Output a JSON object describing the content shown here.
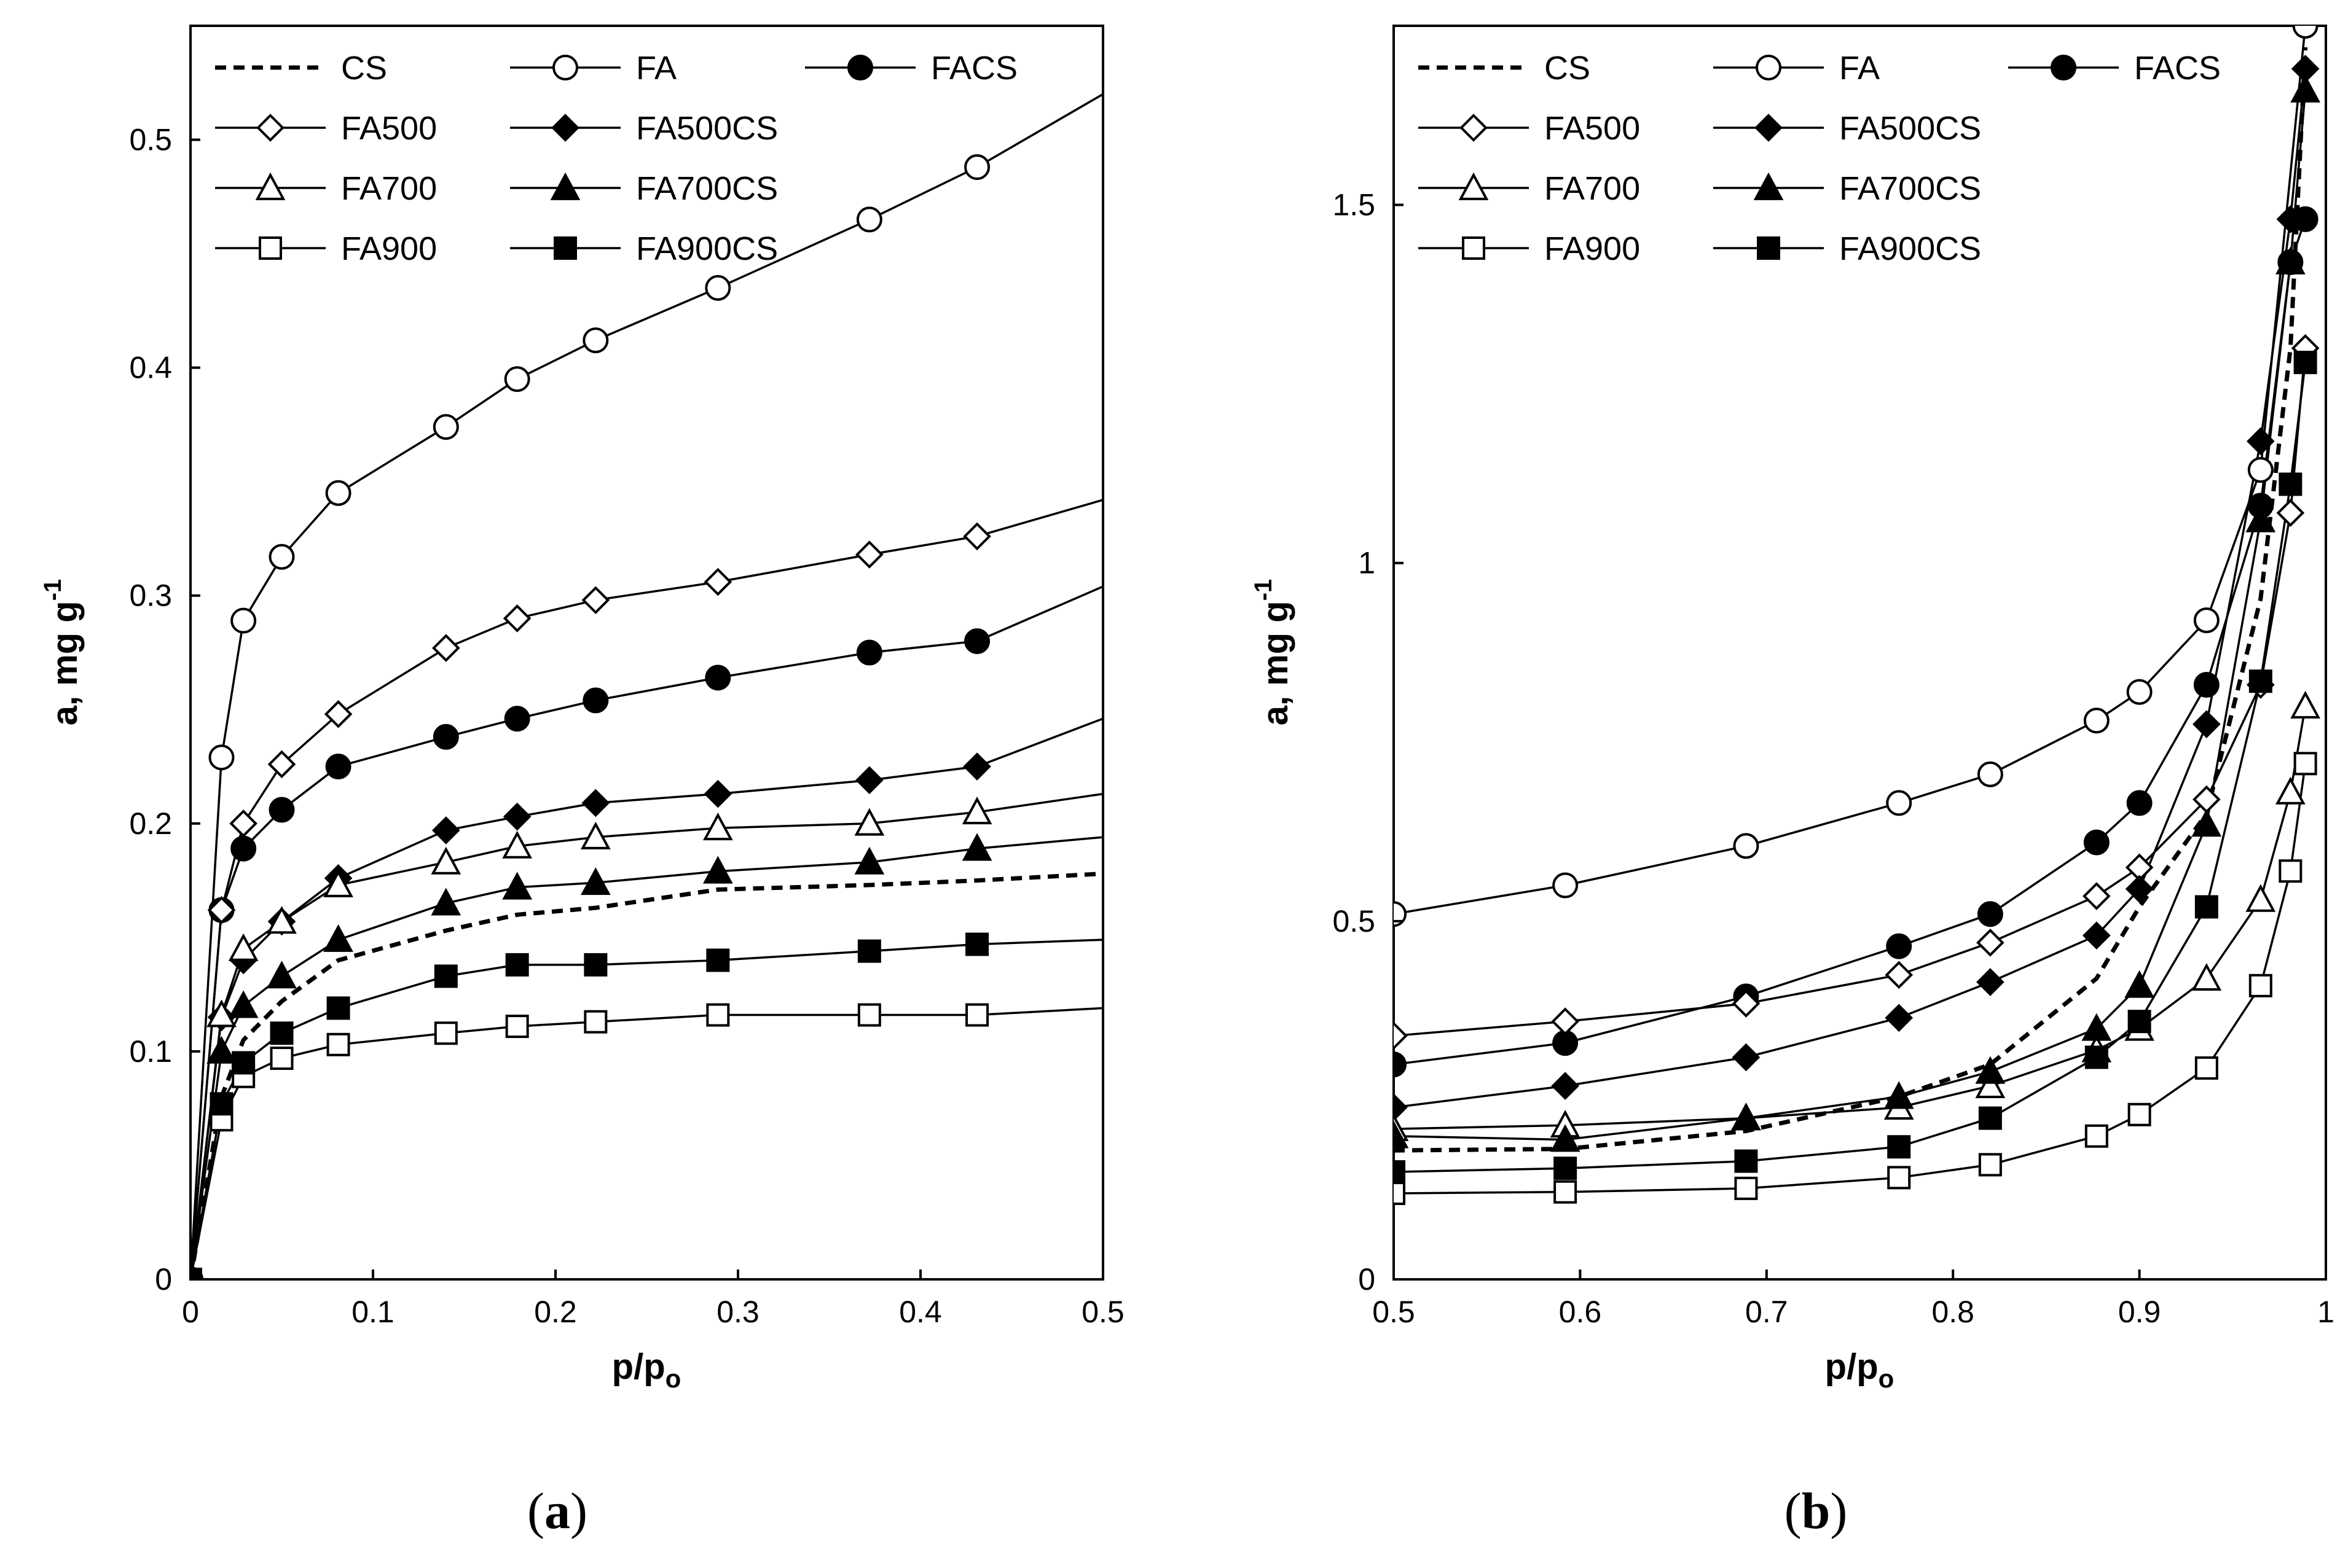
{
  "chart_data": [
    {
      "type": "line",
      "panel_label": "a",
      "title": "",
      "xlabel": "p/p",
      "xlabel_sub": "o",
      "ylabel": "a, mg g",
      "ylabel_sup": "-1",
      "xlim": [
        0,
        0.5
      ],
      "ylim": [
        0,
        0.55
      ],
      "xticks": [
        0,
        0.1,
        0.2,
        0.3,
        0.4,
        0.5
      ],
      "xtick_labels": [
        "0",
        "0.1",
        "0.2",
        "0.3",
        "0.4",
        "0.5"
      ],
      "yticks": [
        0,
        0.1,
        0.2,
        0.3,
        0.4,
        0.5
      ],
      "ytick_labels": [
        "0",
        "0.1",
        "0.2",
        "0.3",
        "0.4",
        "0.5"
      ],
      "grid": false,
      "legend": "top",
      "series": [
        {
          "name": "CS",
          "key": "CS",
          "marker": "none",
          "dashed": true,
          "x": [
            0,
            0.017,
            0.029,
            0.05,
            0.081,
            0.14,
            0.179,
            0.222,
            0.289,
            0.372,
            0.431,
            0.5
          ],
          "y": [
            0,
            0.08,
            0.105,
            0.122,
            0.14,
            0.153,
            0.16,
            0.163,
            0.171,
            0.173,
            0.175,
            0.178
          ]
        },
        {
          "name": "FA",
          "key": "FA",
          "marker": "circle-open",
          "dashed": false,
          "x": [
            0,
            0.017,
            0.029,
            0.05,
            0.081,
            0.14,
            0.179,
            0.222,
            0.289,
            0.372,
            0.431,
            0.5
          ],
          "y": [
            0,
            0.229,
            0.289,
            0.317,
            0.345,
            0.374,
            0.395,
            0.412,
            0.435,
            0.465,
            0.488,
            0.52
          ]
        },
        {
          "name": "FACS",
          "key": "FACS",
          "marker": "circle-filled",
          "dashed": false,
          "x": [
            0,
            0.017,
            0.029,
            0.05,
            0.081,
            0.14,
            0.179,
            0.222,
            0.289,
            0.372,
            0.431,
            0.5
          ],
          "y": [
            0,
            0.162,
            0.189,
            0.206,
            0.225,
            0.238,
            0.246,
            0.254,
            0.264,
            0.275,
            0.28,
            0.304
          ]
        },
        {
          "name": "FA500",
          "key": "FA500",
          "marker": "diamond-open",
          "dashed": false,
          "x": [
            0,
            0.017,
            0.029,
            0.05,
            0.081,
            0.14,
            0.179,
            0.222,
            0.289,
            0.372,
            0.431,
            0.5
          ],
          "y": [
            0,
            0.162,
            0.2,
            0.226,
            0.248,
            0.277,
            0.29,
            0.298,
            0.306,
            0.318,
            0.326,
            0.342
          ]
        },
        {
          "name": "FA500CS",
          "key": "FA500CS",
          "marker": "diamond-filled",
          "dashed": false,
          "x": [
            0,
            0.017,
            0.029,
            0.05,
            0.081,
            0.14,
            0.179,
            0.222,
            0.289,
            0.372,
            0.431,
            0.5
          ],
          "y": [
            0,
            0.115,
            0.14,
            0.157,
            0.176,
            0.197,
            0.203,
            0.209,
            0.213,
            0.219,
            0.225,
            0.246
          ]
        },
        {
          "name": "FA700",
          "key": "FA700",
          "marker": "triangle-open",
          "dashed": false,
          "x": [
            0,
            0.017,
            0.029,
            0.05,
            0.081,
            0.14,
            0.179,
            0.222,
            0.289,
            0.372,
            0.431,
            0.5
          ],
          "y": [
            0,
            0.116,
            0.145,
            0.157,
            0.173,
            0.183,
            0.19,
            0.194,
            0.198,
            0.2,
            0.205,
            0.213
          ]
        },
        {
          "name": "FA700CS",
          "key": "FA700CS",
          "marker": "triangle-filled",
          "dashed": false,
          "x": [
            0,
            0.017,
            0.029,
            0.05,
            0.081,
            0.14,
            0.179,
            0.222,
            0.289,
            0.372,
            0.431,
            0.5
          ],
          "y": [
            0,
            0.1,
            0.12,
            0.133,
            0.149,
            0.165,
            0.172,
            0.174,
            0.179,
            0.183,
            0.189,
            0.194
          ]
        },
        {
          "name": "FA900",
          "key": "FA900",
          "marker": "square-open",
          "dashed": false,
          "x": [
            0,
            0.017,
            0.029,
            0.05,
            0.081,
            0.14,
            0.179,
            0.222,
            0.289,
            0.372,
            0.431,
            0.5
          ],
          "y": [
            0,
            0.07,
            0.089,
            0.097,
            0.103,
            0.108,
            0.111,
            0.113,
            0.116,
            0.116,
            0.116,
            0.119
          ]
        },
        {
          "name": "FA900CS",
          "key": "FA900CS",
          "marker": "square-filled",
          "dashed": false,
          "x": [
            0,
            0.017,
            0.029,
            0.05,
            0.081,
            0.14,
            0.179,
            0.222,
            0.289,
            0.372,
            0.431,
            0.5
          ],
          "y": [
            0,
            0.077,
            0.095,
            0.108,
            0.119,
            0.133,
            0.138,
            0.138,
            0.14,
            0.144,
            0.147,
            0.149
          ]
        }
      ]
    },
    {
      "type": "line",
      "panel_label": "b",
      "title": "",
      "xlabel": "p/p",
      "xlabel_sub": "o",
      "ylabel": "a, mg g",
      "ylabel_sup": "-1",
      "xlim": [
        0.5,
        1.0
      ],
      "ylim": [
        0,
        1.75
      ],
      "xticks": [
        0.5,
        0.6,
        0.7,
        0.8,
        0.9,
        1.0
      ],
      "xtick_labels": [
        "0.5",
        "0.6",
        "0.7",
        "0.8",
        "0.9",
        "1"
      ],
      "yticks": [
        0,
        0.5,
        1.0,
        1.5
      ],
      "ytick_labels": [
        "0",
        "0.5",
        "1",
        "1.5"
      ],
      "grid": false,
      "legend": "top",
      "series": [
        {
          "name": "CS",
          "key": "CS",
          "marker": "none",
          "dashed": true,
          "x": [
            0.5,
            0.592,
            0.689,
            0.771,
            0.82,
            0.877,
            0.9,
            0.936,
            0.965,
            0.981,
            0.989
          ],
          "y": [
            0.18,
            0.182,
            0.207,
            0.255,
            0.3,
            0.42,
            0.52,
            0.65,
            0.95,
            1.3,
            1.72
          ]
        },
        {
          "name": "FA",
          "key": "FA",
          "marker": "circle-open",
          "dashed": false,
          "x": [
            0.5,
            0.592,
            0.689,
            0.771,
            0.82,
            0.877,
            0.9,
            0.936,
            0.965,
            0.989
          ],
          "y": [
            0.51,
            0.55,
            0.605,
            0.665,
            0.705,
            0.78,
            0.82,
            0.92,
            1.13,
            1.75
          ]
        },
        {
          "name": "FACS",
          "key": "FACS",
          "marker": "circle-filled",
          "dashed": false,
          "x": [
            0.5,
            0.592,
            0.689,
            0.771,
            0.82,
            0.877,
            0.9,
            0.936,
            0.965,
            0.981,
            0.989
          ],
          "y": [
            0.3,
            0.33,
            0.395,
            0.465,
            0.51,
            0.61,
            0.665,
            0.83,
            1.08,
            1.42,
            1.48
          ]
        },
        {
          "name": "FA500",
          "key": "FA500",
          "marker": "diamond-open",
          "dashed": false,
          "x": [
            0.5,
            0.592,
            0.689,
            0.771,
            0.82,
            0.877,
            0.9,
            0.936,
            0.965,
            0.981,
            0.989
          ],
          "y": [
            0.34,
            0.36,
            0.385,
            0.425,
            0.47,
            0.535,
            0.575,
            0.67,
            0.83,
            1.07,
            1.3
          ]
        },
        {
          "name": "FA500CS",
          "key": "FA500CS",
          "marker": "diamond-filled",
          "dashed": false,
          "x": [
            0.5,
            0.592,
            0.689,
            0.771,
            0.82,
            0.877,
            0.9,
            0.936,
            0.965,
            0.981,
            0.989
          ],
          "y": [
            0.24,
            0.27,
            0.31,
            0.365,
            0.415,
            0.48,
            0.545,
            0.775,
            1.17,
            1.48,
            1.69
          ]
        },
        {
          "name": "FA700",
          "key": "FA700",
          "marker": "triangle-open",
          "dashed": false,
          "x": [
            0.5,
            0.592,
            0.689,
            0.771,
            0.82,
            0.877,
            0.9,
            0.936,
            0.965,
            0.981,
            0.989
          ],
          "y": [
            0.21,
            0.215,
            0.225,
            0.24,
            0.27,
            0.32,
            0.35,
            0.42,
            0.53,
            0.68,
            0.8
          ]
        },
        {
          "name": "FA700CS",
          "key": "FA700CS",
          "marker": "triangle-filled",
          "dashed": false,
          "x": [
            0.5,
            0.592,
            0.689,
            0.771,
            0.82,
            0.877,
            0.9,
            0.936,
            0.965,
            0.981,
            0.989
          ],
          "y": [
            0.2,
            0.195,
            0.225,
            0.255,
            0.29,
            0.35,
            0.41,
            0.635,
            1.06,
            1.42,
            1.66
          ]
        },
        {
          "name": "FA900",
          "key": "FA900",
          "marker": "square-open",
          "dashed": false,
          "x": [
            0.5,
            0.592,
            0.689,
            0.771,
            0.82,
            0.877,
            0.9,
            0.936,
            0.965,
            0.981,
            0.989
          ],
          "y": [
            0.12,
            0.122,
            0.127,
            0.142,
            0.16,
            0.2,
            0.23,
            0.295,
            0.41,
            0.57,
            0.72
          ]
        },
        {
          "name": "FA900CS",
          "key": "FA900CS",
          "marker": "square-filled",
          "dashed": false,
          "x": [
            0.5,
            0.592,
            0.689,
            0.771,
            0.82,
            0.877,
            0.9,
            0.936,
            0.965,
            0.981,
            0.989
          ],
          "y": [
            0.15,
            0.155,
            0.165,
            0.185,
            0.225,
            0.31,
            0.36,
            0.52,
            0.835,
            1.11,
            1.28
          ]
        }
      ]
    }
  ]
}
